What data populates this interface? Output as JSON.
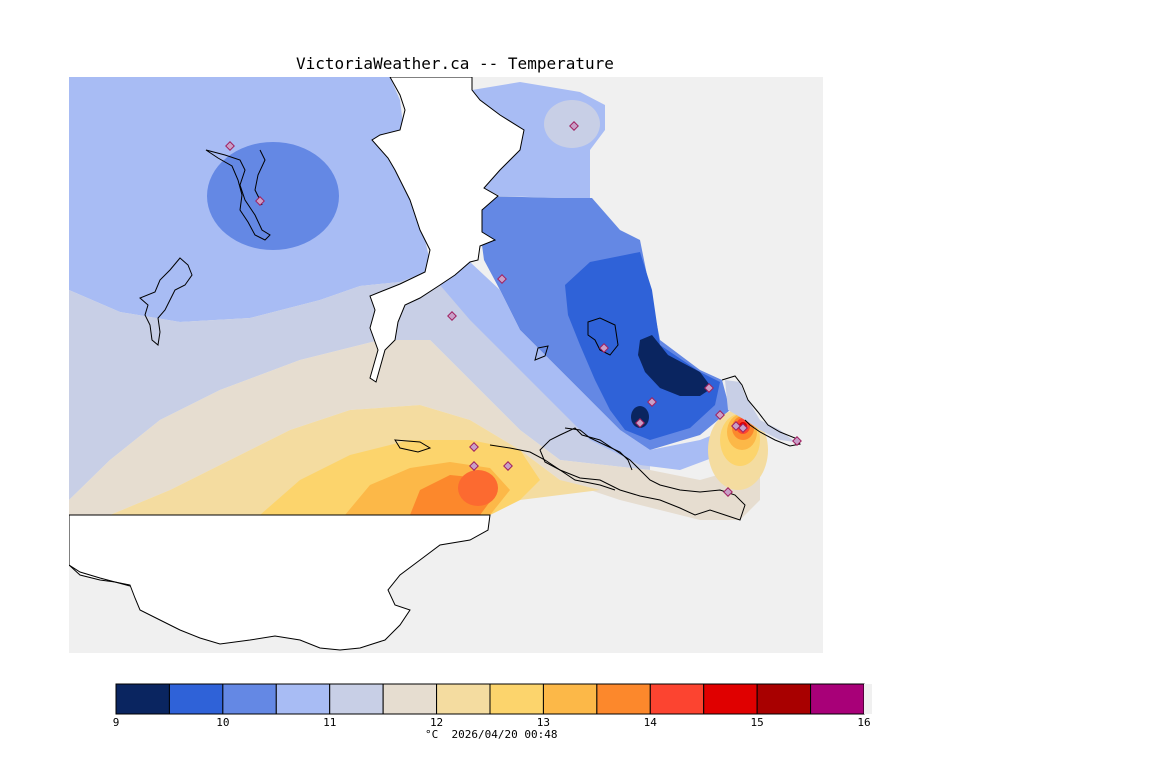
{
  "title": "VictoriaWeather.ca -- Temperature",
  "legend": {
    "caption": "°C  2026/04/20 00:48",
    "ticks": [
      "9",
      "10",
      "11",
      "12",
      "13",
      "14",
      "15",
      "16"
    ],
    "colors": [
      "#0a2560",
      "#2f62d8",
      "#6488e4",
      "#a8bcf4",
      "#c8cfe6",
      "#e6ddd0",
      "#f4dca0",
      "#fcd46c",
      "#fcb848",
      "#fc882c",
      "#fc4430",
      "#e00000",
      "#a80000",
      "#a80078"
    ],
    "min": 9,
    "max": 16,
    "step": 0.5
  },
  "colors": {
    "land": "#f0f0f0",
    "water": "#ffffff",
    "coast": "#000000",
    "station_fill": "#c8a0c8",
    "station_edge": "#a02060"
  },
  "stations_count": 17
}
